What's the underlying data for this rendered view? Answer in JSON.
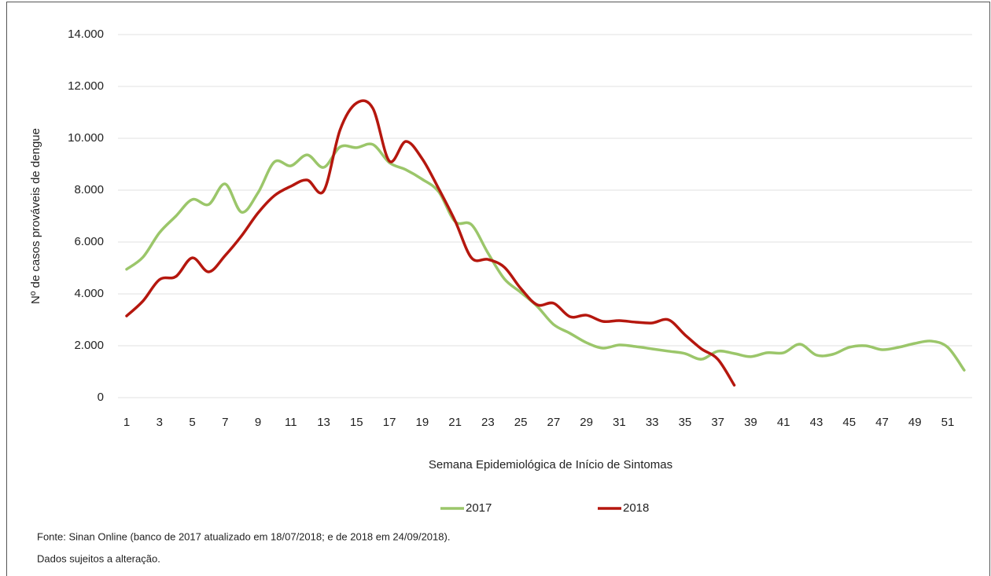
{
  "chart_data": {
    "type": "line",
    "y_label": "Nº de casos prováveis de dengue",
    "x_label": "Semana Epidemiológica de Início de Sintomas",
    "categories": [
      "1",
      null,
      "3",
      null,
      "5",
      null,
      "7",
      null,
      "9",
      null,
      "11",
      null,
      "13",
      null,
      "15",
      null,
      "17",
      null,
      "19",
      null,
      "21",
      null,
      "23",
      null,
      "25",
      null,
      "27",
      null,
      "29",
      null,
      "31",
      null,
      "33",
      null,
      "35",
      null,
      "37",
      null,
      "39",
      null,
      "41",
      null,
      "43",
      null,
      "45",
      null,
      "47",
      null,
      "49",
      null,
      "51",
      null
    ],
    "series": [
      {
        "name": "2017",
        "color": "#9bc66a",
        "values": [
          4950,
          5420,
          6360,
          7000,
          7640,
          7450,
          8240,
          7150,
          7900,
          9090,
          8940,
          9360,
          8880,
          9670,
          9640,
          9760,
          9060,
          8790,
          8420,
          7940,
          6790,
          6670,
          5580,
          4580,
          4060,
          3520,
          2820,
          2480,
          2120,
          1910,
          2030,
          1970,
          1880,
          1790,
          1700,
          1480,
          1790,
          1700,
          1580,
          1730,
          1730,
          2060,
          1640,
          1670,
          1940,
          2000,
          1850,
          1940,
          2090,
          2180,
          1940,
          1060
        ]
      },
      {
        "name": "2018",
        "color": "#b5170e",
        "values": [
          3150,
          3730,
          4550,
          4670,
          5390,
          4850,
          5480,
          6240,
          7120,
          7790,
          8150,
          8390,
          7970,
          10330,
          11360,
          11150,
          9120,
          9880,
          9210,
          8060,
          6820,
          5390,
          5330,
          5030,
          4210,
          3580,
          3640,
          3120,
          3180,
          2940,
          2970,
          2910,
          2880,
          3000,
          2420,
          1880,
          1480,
          480,
          null,
          null,
          null,
          null,
          null,
          null,
          null,
          null,
          null,
          null,
          null,
          null,
          null,
          null
        ]
      }
    ],
    "ylim": [
      0,
      14000
    ],
    "yticks": [
      0,
      {
        "value": 2000,
        "label": "2.000"
      },
      {
        "value": 4000,
        "label": "4.000"
      },
      {
        "value": 6000,
        "label": "6.000"
      },
      {
        "value": 8000,
        "label": "8.000"
      },
      {
        "value": 10000,
        "label": "10.000"
      },
      {
        "value": 12000,
        "label": "12.000"
      },
      {
        "value": 14000,
        "label": "14.000"
      }
    ],
    "grid": true,
    "notes": [
      "Fonte: Sinan Online (banco de 2017 atualizado em 18/07/2018; e de 2018 em 24/09/2018).",
      "Dados sujeitos a alteração."
    ]
  }
}
